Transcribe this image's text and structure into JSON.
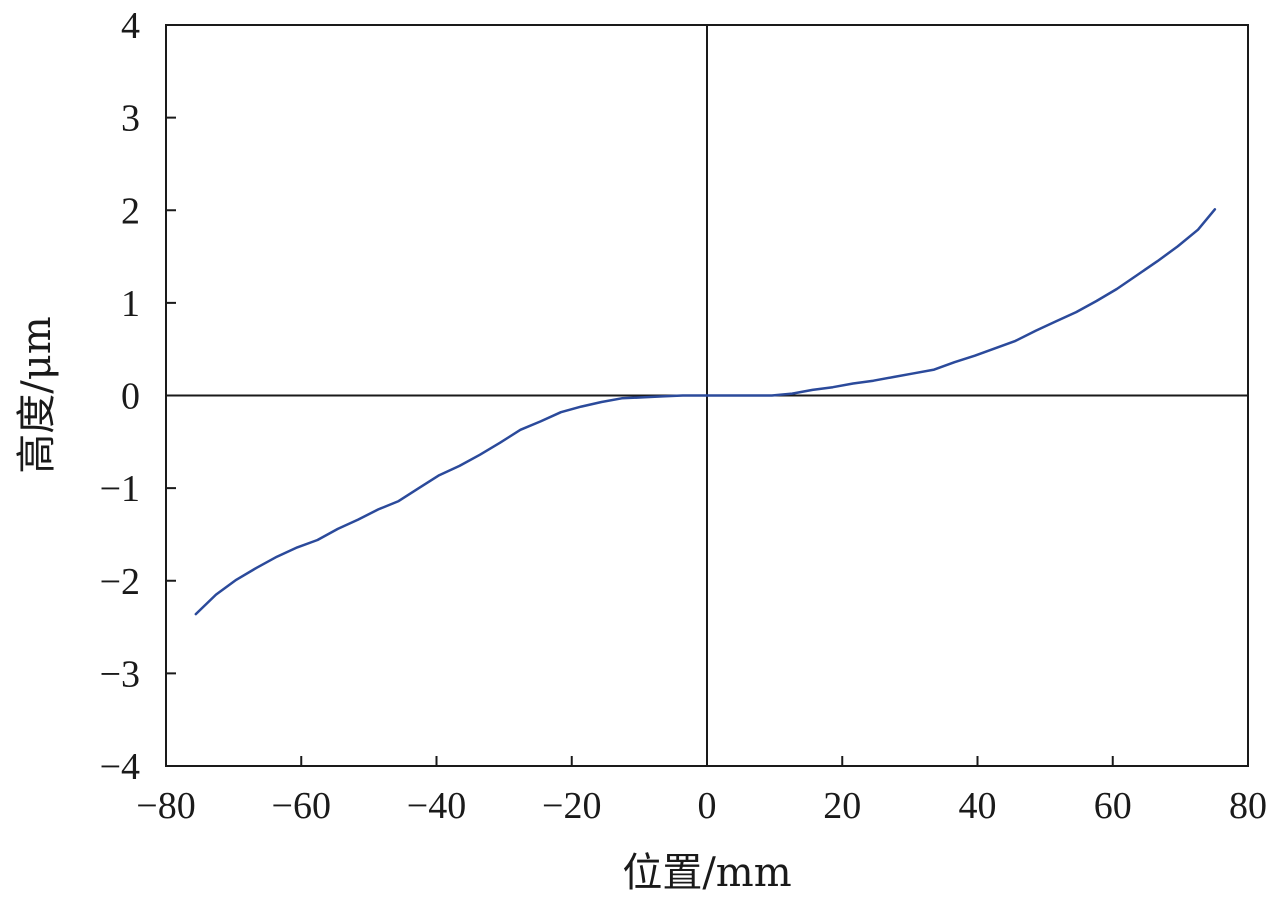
{
  "chart_data": {
    "type": "line",
    "xlabel": "位置/mm",
    "ylabel": "高度/μm",
    "xlim": [
      -80,
      80
    ],
    "ylim": [
      -4,
      4
    ],
    "x_ticks": [
      -80,
      -60,
      -40,
      -20,
      0,
      20,
      40,
      60,
      80
    ],
    "y_ticks": [
      -4,
      -3,
      -2,
      -1,
      0,
      1,
      2,
      3,
      4
    ],
    "x_tick_labels": [
      "−80",
      "−60",
      "−40",
      "−20",
      "0",
      "20",
      "40",
      "60",
      "80"
    ],
    "y_tick_labels": [
      "−4",
      "−3",
      "−2",
      "−1",
      "0",
      "1",
      "2",
      "3",
      "4"
    ],
    "grid": false,
    "zero_lines": true,
    "series": [
      {
        "color": "#2b4a9b",
        "x": [
          -75.6,
          -72.6,
          -69.6,
          -66.6,
          -63.6,
          -60.6,
          -57.6,
          -54.6,
          -51.6,
          -48.6,
          -45.6,
          -42.6,
          -39.6,
          -36.6,
          -33.6,
          -30.6,
          -27.6,
          -24.6,
          -21.6,
          -18.6,
          -15.6,
          -12.6,
          -9.6,
          -6.6,
          -3.6,
          0,
          3.6,
          6.6,
          9.6,
          12.6,
          15.6,
          18.6,
          21.6,
          24.6,
          27.6,
          30.6,
          33.6,
          36.6,
          39.6,
          42.6,
          45.6,
          48.6,
          51.6,
          54.6,
          57.6,
          60.6,
          63.6,
          66.6,
          69.6,
          72.6,
          75.1
        ],
        "y": [
          -2.36,
          -2.15,
          -1.99,
          -1.86,
          -1.74,
          -1.64,
          -1.56,
          -1.44,
          -1.34,
          -1.23,
          -1.14,
          -1.0,
          -0.86,
          -0.76,
          -0.64,
          -0.51,
          -0.37,
          -0.28,
          -0.18,
          -0.12,
          -0.07,
          -0.03,
          -0.02,
          -0.01,
          0.0,
          0.0,
          0.0,
          0.0,
          0.0,
          0.02,
          0.06,
          0.09,
          0.13,
          0.16,
          0.2,
          0.24,
          0.28,
          0.36,
          0.43,
          0.51,
          0.59,
          0.7,
          0.8,
          0.9,
          1.02,
          1.15,
          1.3,
          1.45,
          1.61,
          1.79,
          2.01
        ]
      }
    ]
  }
}
